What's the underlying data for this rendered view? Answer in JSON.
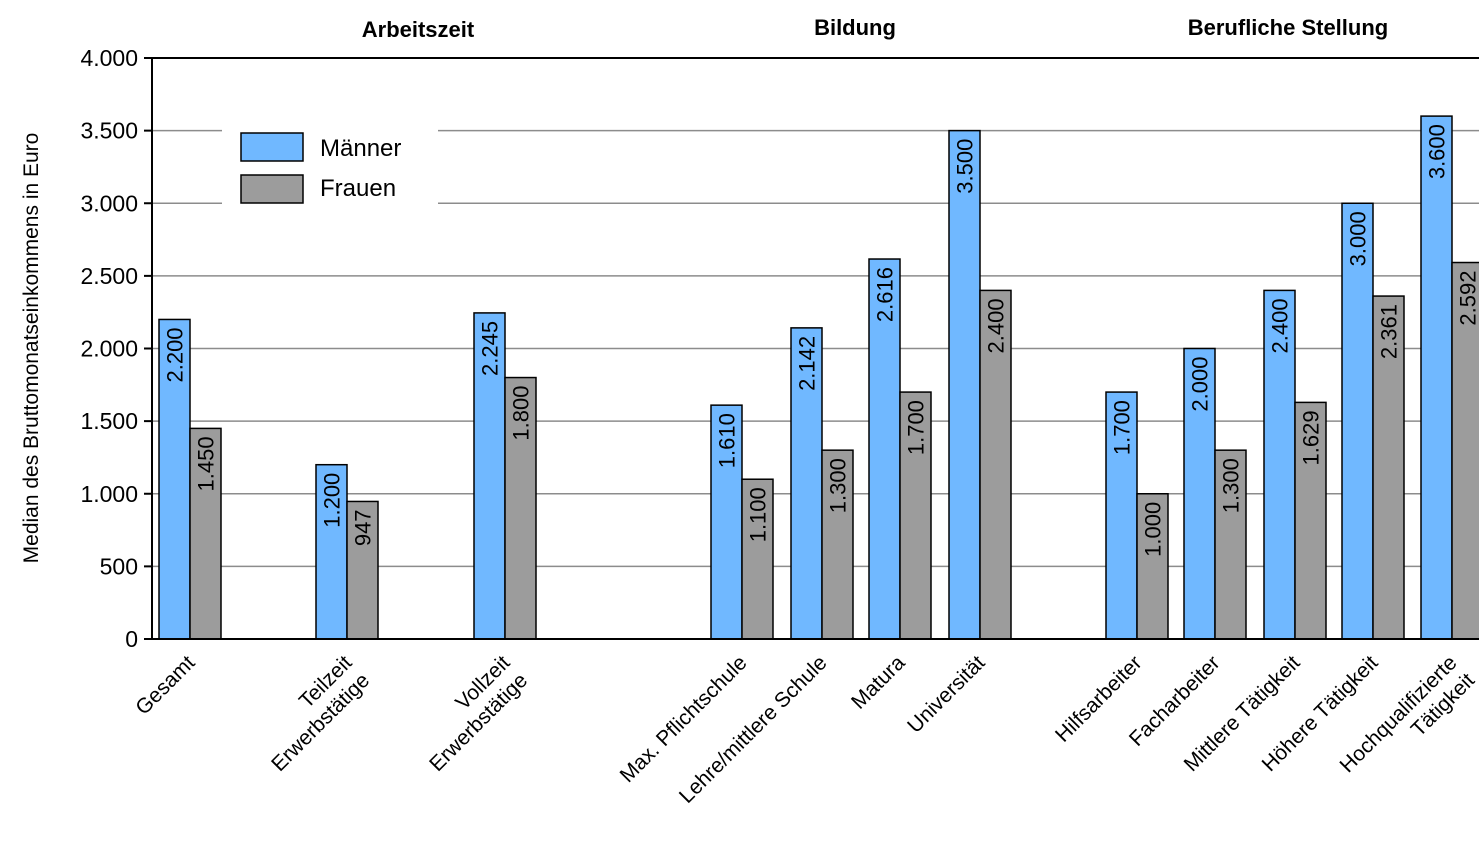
{
  "chart_data": {
    "type": "bar",
    "ylabel": "Median des Bruttomonatseinkommens in Euro",
    "ylim": [
      0,
      4000
    ],
    "yticks": [
      {
        "value": 0,
        "label": "0"
      },
      {
        "value": 500,
        "label": "500"
      },
      {
        "value": 1000,
        "label": "1.000"
      },
      {
        "value": 1500,
        "label": "1.500"
      },
      {
        "value": 2000,
        "label": "2.000"
      },
      {
        "value": 2500,
        "label": "2.500"
      },
      {
        "value": 3000,
        "label": "3.000"
      },
      {
        "value": 3500,
        "label": "3.500"
      },
      {
        "value": 4000,
        "label": "4.000"
      }
    ],
    "grid": true,
    "legend_position": "top-left",
    "groups": [
      {
        "title": "Arbeitszeit",
        "categories": [
          "Gesamt",
          "Teilzeit\nErwerbstätige",
          "Vollzeit\nErwerbstätige"
        ]
      },
      {
        "title": "Bildung",
        "categories": [
          "Max. Pflichtschule",
          "Lehre/mittlere Schule",
          "Matura",
          "Universität"
        ]
      },
      {
        "title": "Berufliche Stellung",
        "categories": [
          "Hilfsarbeiter",
          "Facharbeiter",
          "Mittlere Tätigkeit",
          "Höhere Tätigkeit",
          "Hochqualifizierte\nTätigkeit"
        ]
      }
    ],
    "categories": [
      "Gesamt",
      "Teilzeit\nErwerbstätige",
      "Vollzeit\nErwerbstätige",
      "Max. Pflichtschule",
      "Lehre/mittlere Schule",
      "Matura",
      "Universität",
      "Hilfsarbeiter",
      "Facharbeiter",
      "Mittlere Tätigkeit",
      "Höhere Tätigkeit",
      "Hochqualifizierte\nTätigkeit"
    ],
    "series": [
      {
        "name": "Männer",
        "color": "#70B8FF",
        "values": [
          2200,
          1200,
          2245,
          1610,
          2142,
          2616,
          3500,
          1700,
          2000,
          2400,
          3000,
          3600
        ],
        "labels": [
          "2.200",
          "1.200",
          "2.245",
          "1.610",
          "2.142",
          "2.616",
          "3.500",
          "1.700",
          "2.000",
          "2.400",
          "3.000",
          "3.600"
        ]
      },
      {
        "name": "Frauen",
        "color": "#9C9C9C",
        "values": [
          1450,
          947,
          1800,
          1100,
          1300,
          1700,
          2400,
          1000,
          1300,
          1629,
          2361,
          2592
        ],
        "labels": [
          "1.450",
          "947",
          "1.800",
          "1.100",
          "1.300",
          "1.700",
          "2.400",
          "1.000",
          "1.300",
          "1.629",
          "2.361",
          "2.592"
        ]
      }
    ]
  }
}
